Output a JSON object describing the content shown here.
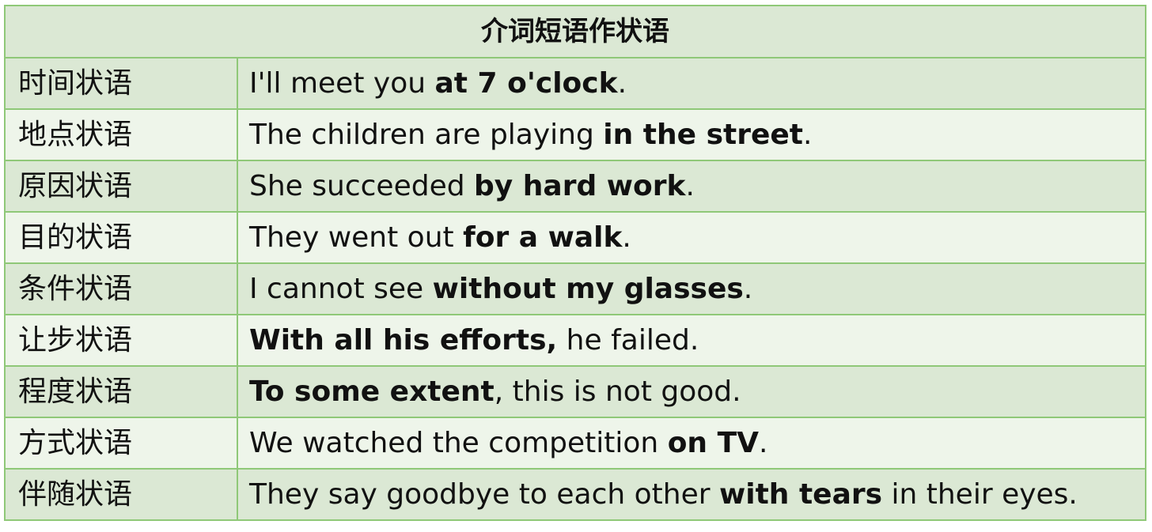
{
  "table": {
    "header": "介词短语作状语",
    "rows": [
      {
        "label": "时间状语",
        "parts": [
          "I'll meet you ",
          "at 7 o'clock",
          "."
        ],
        "bold": [
          false,
          true,
          false
        ]
      },
      {
        "label": "地点状语",
        "parts": [
          "The children are playing ",
          "in the street",
          "."
        ],
        "bold": [
          false,
          true,
          false
        ]
      },
      {
        "label": "原因状语",
        "parts": [
          "She succeeded ",
          "by hard work",
          "."
        ],
        "bold": [
          false,
          true,
          false
        ]
      },
      {
        "label": "目的状语",
        "parts": [
          "They went out ",
          "for a walk",
          "."
        ],
        "bold": [
          false,
          true,
          false
        ]
      },
      {
        "label": "条件状语",
        "parts": [
          "I cannot see ",
          "without my glasses",
          "."
        ],
        "bold": [
          false,
          true,
          false
        ]
      },
      {
        "label": "让步状语",
        "parts": [
          "With all his efforts,",
          " he failed."
        ],
        "bold": [
          true,
          false
        ]
      },
      {
        "label": "程度状语",
        "parts": [
          "To some extent",
          ", this is not good."
        ],
        "bold": [
          true,
          false
        ]
      },
      {
        "label": "方式状语",
        "parts": [
          "We watched the competition ",
          "on TV",
          "."
        ],
        "bold": [
          false,
          true,
          false
        ]
      },
      {
        "label": "伴随状语",
        "parts": [
          "They say goodbye to each other ",
          "with tears",
          " in their eyes."
        ],
        "bold": [
          false,
          true,
          false
        ]
      }
    ]
  },
  "colors": {
    "border": "#8fc878",
    "row_dark": "#dbe8d4",
    "row_light": "#eef5ea"
  }
}
